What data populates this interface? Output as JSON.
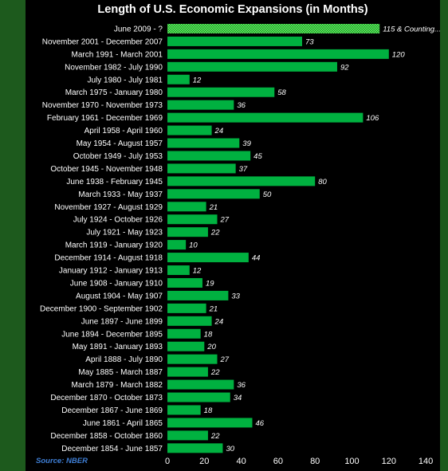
{
  "chart_data": {
    "type": "bar",
    "orientation": "horizontal",
    "title": "Length of U.S. Economic Expansions (in Months)",
    "source": "Source: NBER",
    "xlabel": "",
    "ylabel": "",
    "xlim": [
      0,
      140
    ],
    "xticks": [
      0,
      20,
      40,
      60,
      80,
      100,
      120,
      140
    ],
    "grid": false,
    "legend": "none",
    "bar_color": "#00b140",
    "highlight_color": "#22c42a",
    "categories": [
      "June 2009 - ?",
      "November 2001 - December 2007",
      "March 1991 - March 2001",
      "November 1982 - July 1990",
      "July 1980 - July 1981",
      "March 1975 - January 1980",
      "November 1970 - November 1973",
      "February 1961 - December 1969",
      "April 1958 - April 1960",
      "May 1954 - August 1957",
      "October 1949 - July 1953",
      "October 1945 - November 1948",
      "June 1938 - February 1945",
      "March 1933 - May 1937",
      "November 1927 - August 1929",
      "July 1924 - October 1926",
      "July 1921 - May 1923",
      "March 1919 - January 1920",
      "December 1914 - August 1918",
      "January 1912 - January 1913",
      "June 1908 - January 1910",
      "August 1904 - May 1907",
      "December 1900 -  September 1902",
      "June 1897 - June 1899",
      "June 1894 - December 1895",
      "May 1891 - January 1893",
      "April 1888 - July 1890",
      "May 1885 - March 1887",
      "March 1879 - March 1882",
      "December 1870 - October 1873",
      "December 1867 - June 1869",
      "June 1861 - April 1865",
      "December 1858 - October 1860",
      "December 1854 - June 1857"
    ],
    "values": [
      115,
      73,
      120,
      92,
      12,
      58,
      36,
      106,
      24,
      39,
      45,
      37,
      80,
      50,
      21,
      27,
      22,
      10,
      44,
      12,
      19,
      33,
      21,
      24,
      18,
      20,
      27,
      22,
      36,
      34,
      18,
      46,
      22,
      30
    ],
    "value_labels": [
      "115 & Counting...",
      "73",
      "120",
      "92",
      "12",
      "58",
      "36",
      "106",
      "24",
      "39",
      "45",
      "37",
      "80",
      "50",
      "21",
      "27",
      "22",
      "10",
      "44",
      "12",
      "19",
      "33",
      "21",
      "24",
      "18",
      "20",
      "27",
      "22",
      "36",
      "34",
      "18",
      "46",
      "22",
      "30"
    ]
  }
}
